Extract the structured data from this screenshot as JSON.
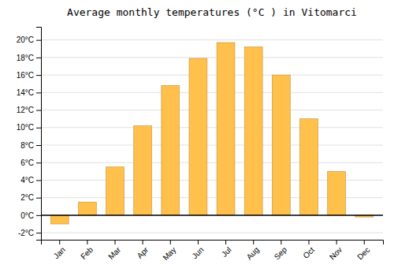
{
  "chart_data": {
    "type": "bar",
    "title": "Average monthly temperatures (°C ) in Vitomarci",
    "categories": [
      "Jan",
      "Feb",
      "Mar",
      "Apr",
      "May",
      "Jun",
      "Jul",
      "Aug",
      "Sep",
      "Oct",
      "Nov",
      "Dec"
    ],
    "values": [
      -1.0,
      1.5,
      5.5,
      10.2,
      14.8,
      17.9,
      19.7,
      19.2,
      16.0,
      11.0,
      5.0,
      -0.2
    ],
    "color": "#FFC04C",
    "ylim": [
      -2.8,
      21.5
    ],
    "yticks": [
      {
        "value": -2,
        "label": "-2°C"
      },
      {
        "value": 0,
        "label": "0°C"
      },
      {
        "value": 2,
        "label": "2°C"
      },
      {
        "value": 4,
        "label": "4°C"
      },
      {
        "value": 6,
        "label": "6°C"
      },
      {
        "value": 8,
        "label": "8°C"
      },
      {
        "value": 10,
        "label": "10°C"
      },
      {
        "value": 12,
        "label": "12°C"
      },
      {
        "value": 14,
        "label": "14°C"
      },
      {
        "value": 16,
        "label": "16°C"
      },
      {
        "value": 18,
        "label": "18°C"
      },
      {
        "value": 20,
        "label": "20°C"
      }
    ],
    "grid": true
  }
}
